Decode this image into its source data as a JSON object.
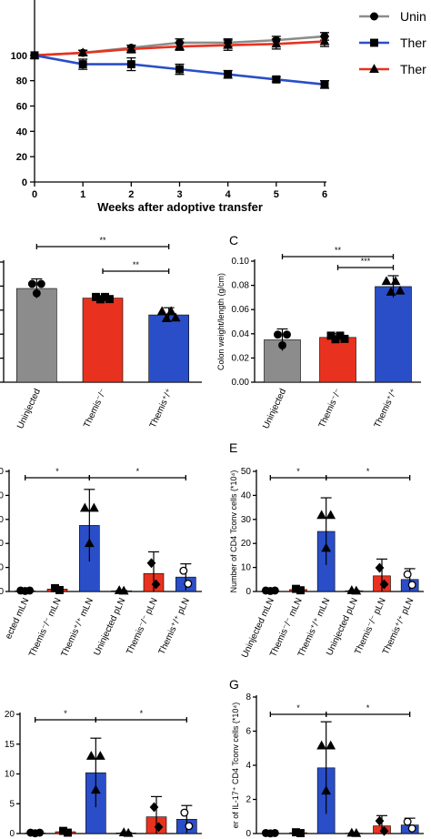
{
  "colors": {
    "gray": "#8c8c8c",
    "blue": "#2a4ec8",
    "red": "#e8321f",
    "black": "#000000"
  },
  "chart_data": [
    {
      "id": "A",
      "type": "line",
      "xlabel": "Weeks after adoptive transfer",
      "x": [
        0,
        1,
        2,
        3,
        4,
        5,
        6
      ],
      "xticks": [
        "0",
        "1",
        "2",
        "3",
        "4",
        "5",
        "6"
      ],
      "yticks": [
        "0",
        "20",
        "40",
        "60",
        "80",
        "100"
      ],
      "ylim": [
        0,
        120
      ],
      "legend": [
        "Unin",
        "Ther",
        "Ther"
      ],
      "series": [
        {
          "color": "gray",
          "marker": "circle",
          "values": [
            100,
            102,
            106,
            110,
            110,
            112,
            115
          ],
          "err": [
            0,
            2,
            2,
            3,
            3,
            3,
            3
          ]
        },
        {
          "color": "red",
          "marker": "triangle",
          "values": [
            100,
            102,
            105,
            107,
            108,
            109,
            111
          ],
          "err": [
            0,
            2,
            3,
            3,
            4,
            4,
            4
          ]
        },
        {
          "color": "blue",
          "marker": "square",
          "values": [
            100,
            93,
            93,
            89,
            85,
            81,
            77
          ],
          "err": [
            0,
            4,
            5,
            4,
            3,
            2,
            3
          ]
        }
      ]
    },
    {
      "id": "B",
      "type": "bar",
      "categories": [
        "Uninjected",
        "Themis⁻/⁻",
        "Themis⁺/⁺"
      ],
      "values": [
        0.039,
        0.035,
        0.028
      ],
      "err": [
        0.004,
        0.001,
        0.003
      ],
      "ylim": [
        0,
        0.05
      ],
      "significance": [
        "**",
        "**"
      ]
    },
    {
      "id": "C",
      "type": "bar",
      "ylabel": "Colon weight/length (g/cm)",
      "categories": [
        "Uninjected",
        "Themis⁻/⁻",
        "Themis⁺/⁺"
      ],
      "values": [
        0.035,
        0.037,
        0.079
      ],
      "err": [
        0.009,
        0.003,
        0.009
      ],
      "yticks": [
        "0.00",
        "0.02",
        "0.04",
        "0.06",
        "0.08",
        "0.10"
      ],
      "ylim": [
        0,
        0.1
      ],
      "significance": [
        "**",
        "***"
      ]
    },
    {
      "id": "D",
      "type": "bar",
      "categories": [
        "ected mLN",
        "Themis⁻/⁻ mLN",
        "Themis⁺/⁺ mLN",
        "Uninjected pLN",
        "Themis⁻/⁻ pLN",
        "Themis⁺/⁺ pLN"
      ],
      "values": [
        0.3,
        1.0,
        27.5,
        0.3,
        7.5,
        6.0
      ],
      "err": [
        0.2,
        0.8,
        15,
        0.2,
        9,
        5.5
      ],
      "yticks": [
        "0",
        "10",
        "20",
        "30",
        "40",
        "50"
      ],
      "ylim": [
        0,
        50
      ],
      "significance": [
        "*",
        "*"
      ]
    },
    {
      "id": "E",
      "type": "bar",
      "ylabel": "Number of CD4 Tconv cells (*10⁴)",
      "categories": [
        "Uninjected mLN",
        "Themis⁻/⁻ mLN",
        "Themis⁺/⁺ mLN",
        "Uninjected pLN",
        "Themis⁻/⁻ pLN",
        "Themis⁺/⁺ pLN"
      ],
      "values": [
        0.3,
        0.8,
        25,
        0.3,
        6.5,
        5.0
      ],
      "err": [
        0.2,
        0.6,
        14,
        0.2,
        7,
        4.5
      ],
      "yticks": [
        "0",
        "10",
        "20",
        "30",
        "40",
        "50"
      ],
      "ylim": [
        0,
        50
      ],
      "significance": [
        "*",
        "*"
      ]
    },
    {
      "id": "F",
      "type": "bar",
      "categories": [
        "",
        "",
        "",
        "",
        "",
        ""
      ],
      "values": [
        0.1,
        0.3,
        10.2,
        0.1,
        2.8,
        2.4
      ],
      "err": [
        0.1,
        0.3,
        5.8,
        0.1,
        3.4,
        2.3
      ],
      "yticks": [
        "0",
        "5",
        "10",
        "15",
        "20"
      ],
      "ylim": [
        0,
        20
      ],
      "significance": [
        "*",
        "*"
      ]
    },
    {
      "id": "G",
      "type": "bar",
      "ylabel": "er of IL-17⁺ CD4 Tconv cells (*10⁴)",
      "categories": [
        "",
        "",
        "",
        "",
        "",
        ""
      ],
      "values": [
        0.02,
        0.05,
        3.85,
        0.02,
        0.45,
        0.5
      ],
      "err": [
        0.02,
        0.05,
        2.7,
        0.02,
        0.6,
        0.4
      ],
      "yticks": [
        "0",
        "2",
        "4",
        "6",
        "8"
      ],
      "ylim": [
        0,
        8
      ],
      "significance": [
        "*",
        "*"
      ]
    }
  ],
  "panel_labels": {
    "C": "C",
    "E": "E",
    "G": "G"
  }
}
